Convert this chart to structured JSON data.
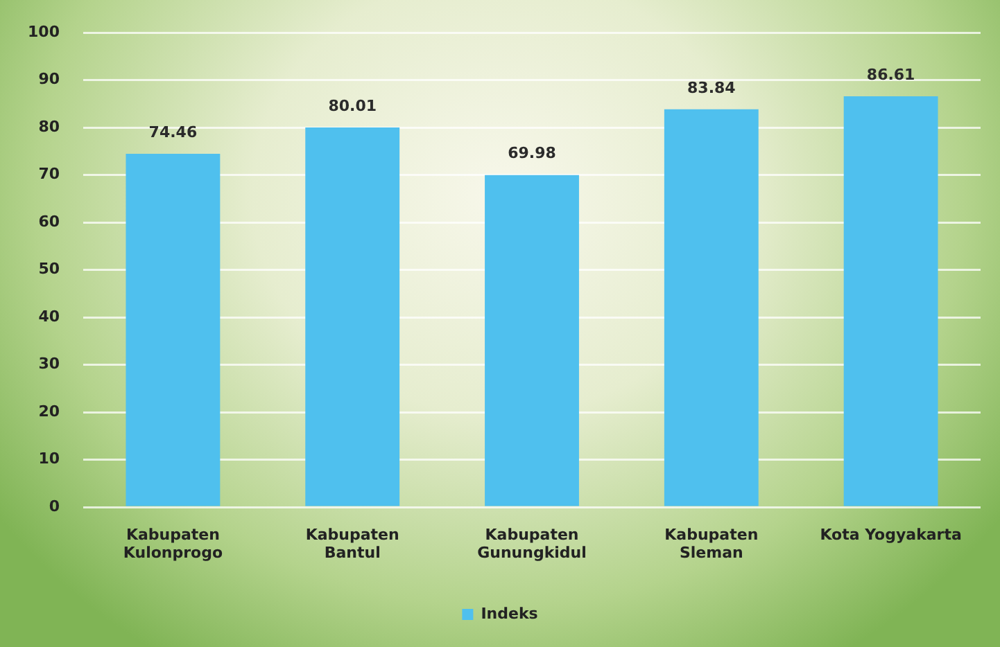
{
  "chart_data": {
    "type": "bar",
    "categories": [
      "Kabupaten\nKulonprogo",
      "Kabupaten\nBantul",
      "Kabupaten\nGunungkidul",
      "Kabupaten\nSleman",
      "Kota Yogyakarta"
    ],
    "series": [
      {
        "name": "Indeks",
        "color": "#4fc0ee",
        "values": [
          74.46,
          80.01,
          69.98,
          83.84,
          86.61
        ]
      }
    ],
    "ylim": [
      0,
      100
    ],
    "yticks": [
      0,
      10,
      20,
      30,
      40,
      50,
      60,
      70,
      80,
      90,
      100
    ],
    "grid": "y",
    "legend": "bottom",
    "data_labels": true
  }
}
